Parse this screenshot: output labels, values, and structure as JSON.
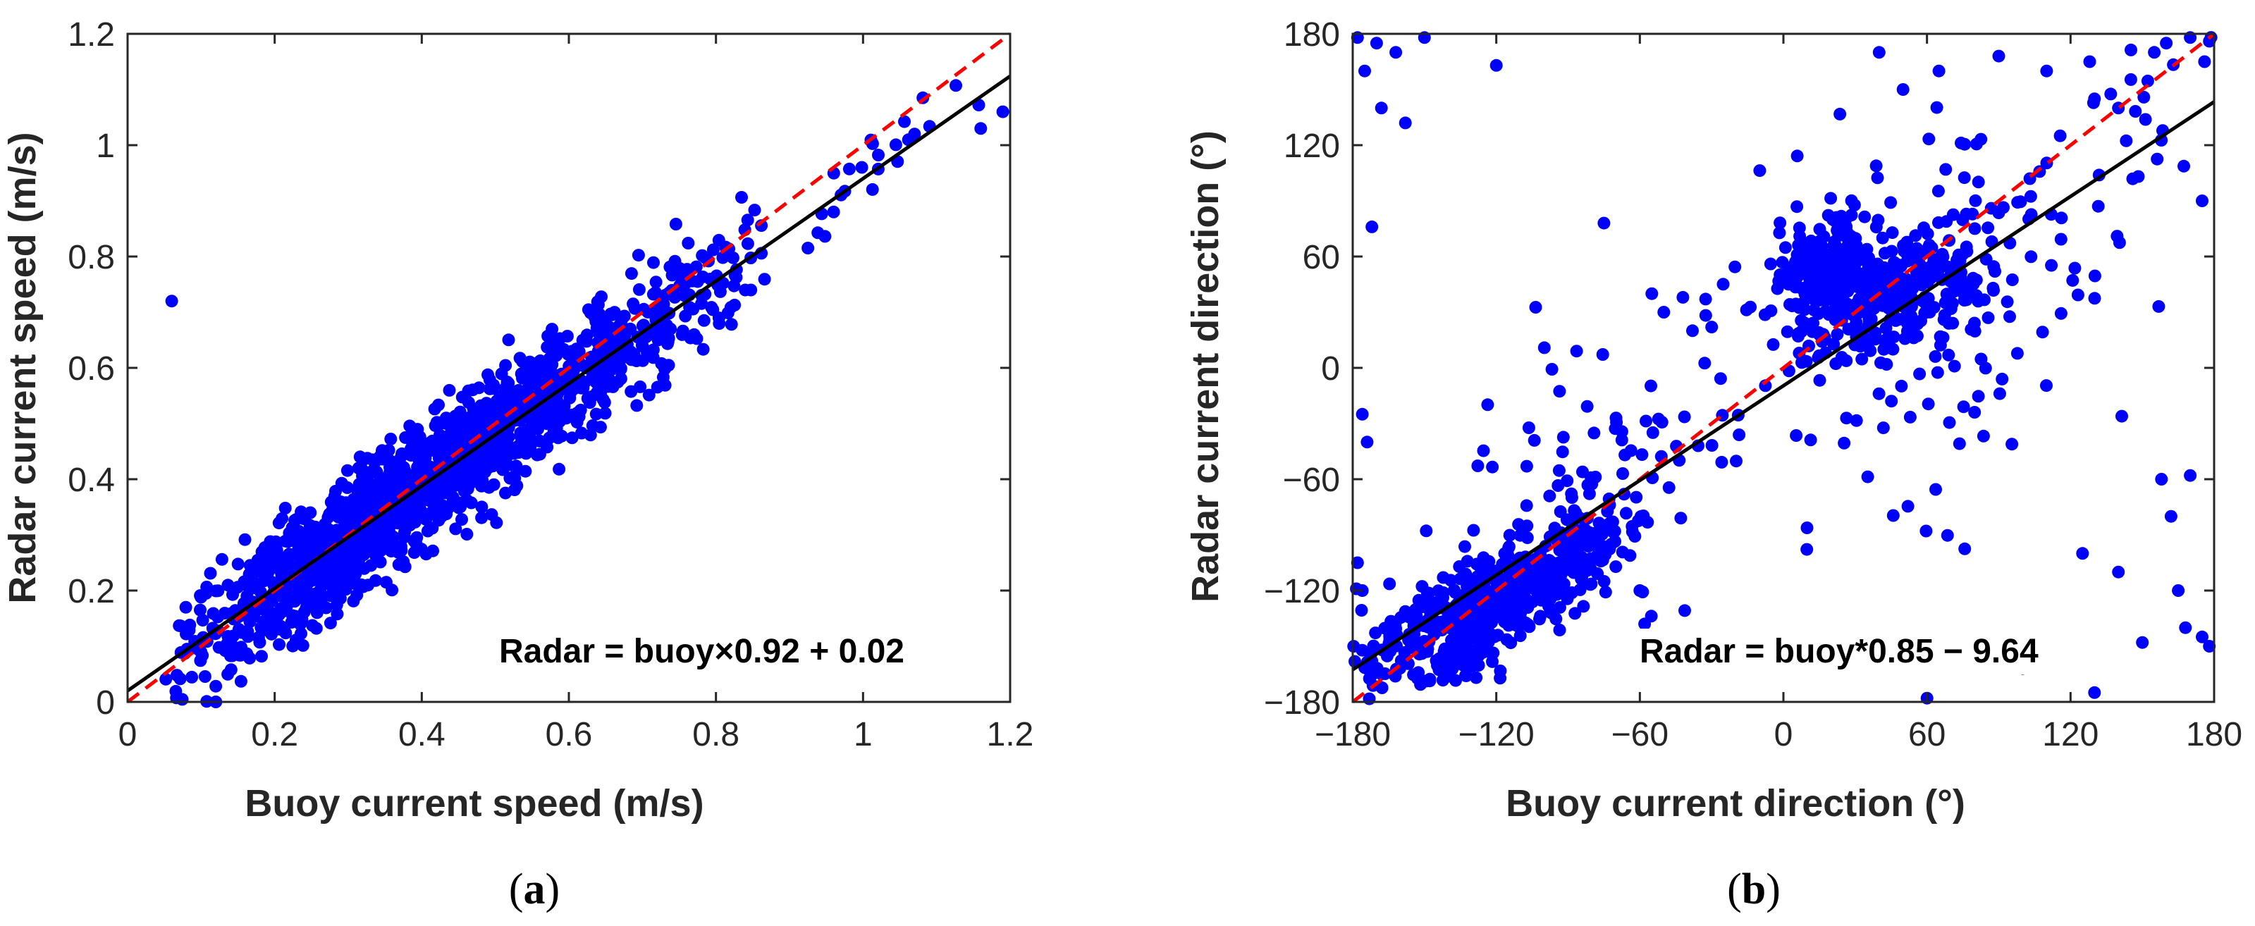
{
  "chart_data": [
    {
      "type": "scatter",
      "panel": "a",
      "caption_open": "(",
      "caption_letter": "a",
      "caption_close": ")",
      "xlabel": "Buoy current speed (m/s)",
      "ylabel": "Radar current speed (m/s)",
      "xlim": [
        0,
        1.2
      ],
      "ylim": [
        0,
        1.2
      ],
      "xticks": [
        0,
        0.2,
        0.4,
        0.6,
        0.8,
        1,
        1.2
      ],
      "xtick_labels": [
        "0",
        "0.2",
        "0.4",
        "0.6",
        "0.8",
        "1",
        "1.2"
      ],
      "yticks": [
        0,
        0.2,
        0.4,
        0.6,
        0.8,
        1,
        1.2
      ],
      "ytick_labels": [
        "0",
        "0.2",
        "0.4",
        "0.6",
        "0.8",
        "1",
        "1.2"
      ],
      "equation": "Radar = buoy×0.92 + 0.02",
      "fit": {
        "slope": 0.92,
        "intercept": 0.02,
        "color": "#000000"
      },
      "identity_line": {
        "slope": 1,
        "intercept": 0,
        "color": "#ff0000",
        "style": "dashed"
      },
      "point_color": "#0000ff",
      "clusters": [
        {
          "n": 1500,
          "x_range": [
            0.04,
            0.88
          ],
          "x_mode": 0.32,
          "slope": 0.92,
          "intercept": 0.02,
          "y_sd": 0.055
        },
        {
          "n": 22,
          "x_range": [
            0.88,
            1.19
          ],
          "x_mode": 1.0,
          "slope": 0.92,
          "intercept": 0.02,
          "y_sd": 0.04
        }
      ],
      "points": [
        [
          0.06,
          0.72
        ],
        [
          0.19,
          0.27
        ],
        [
          0.12,
          0.0
        ],
        [
          0.96,
          0.88
        ],
        [
          1.07,
          1.02
        ],
        [
          1.16,
          1.03
        ],
        [
          1.19,
          1.06
        ]
      ]
    },
    {
      "type": "scatter",
      "panel": "b",
      "caption_open": "(",
      "caption_letter": "b",
      "caption_close": ")",
      "xlabel": "Buoy current direction (°)",
      "ylabel": "Radar current direction (°)",
      "xlim": [
        -180,
        180
      ],
      "ylim": [
        -180,
        180
      ],
      "xticks": [
        -180,
        -120,
        -60,
        0,
        60,
        120,
        180
      ],
      "xtick_labels": [
        "−180",
        "−120",
        "−60",
        "0",
        "60",
        "120",
        "180"
      ],
      "yticks": [
        -180,
        -120,
        -60,
        0,
        60,
        120,
        180
      ],
      "ytick_labels": [
        "−180",
        "−120",
        "−60",
        "0",
        "60",
        "120",
        "180"
      ],
      "equation": "Radar = buoy*0.85 − 9.64",
      "fit": {
        "slope": 0.85,
        "intercept": -9.64,
        "color": "#000000"
      },
      "identity_line": {
        "slope": 1,
        "intercept": 0,
        "color": "#ff0000",
        "style": "dashed"
      },
      "point_color": "#0000ff",
      "clusters": [
        {
          "n": 560,
          "cx": -120,
          "cy": -125,
          "sx": 28,
          "sy": 24,
          "rho": 0.82
        },
        {
          "n": 330,
          "cx": 42,
          "cy": 40,
          "sx": 22,
          "sy": 18,
          "rho": 0.3
        },
        {
          "n": 150,
          "cx": 18,
          "cy": 55,
          "sx": 9,
          "sy": 14,
          "rho": 0.0
        },
        {
          "n": 90,
          "cx": -95,
          "cy": -80,
          "sx": 35,
          "sy": 50,
          "rho": 0.6
        },
        {
          "n": 110,
          "cx": 60,
          "cy": 30,
          "sx": 40,
          "sy": 60,
          "rho": 0.2
        },
        {
          "n": 40,
          "cx": 140,
          "cy": 110,
          "sx": 28,
          "sy": 45,
          "rho": 0.5
        }
      ],
      "points": [
        [
          -178,
          178
        ],
        [
          -170,
          175
        ],
        [
          -162,
          170
        ],
        [
          -150,
          178
        ],
        [
          -175,
          160
        ],
        [
          -168,
          140
        ],
        [
          -158,
          132
        ],
        [
          -120,
          163
        ],
        [
          -172,
          76
        ],
        [
          -176,
          -25
        ],
        [
          -174,
          -40
        ],
        [
          -178,
          -105
        ],
        [
          -176,
          -120
        ],
        [
          -172,
          -158
        ],
        [
          -55,
          40
        ],
        [
          -50,
          30
        ],
        [
          -42,
          38
        ],
        [
          -38,
          20
        ],
        [
          -30,
          22
        ],
        [
          -75,
          78
        ],
        [
          -60,
          -120
        ],
        [
          -58,
          -138
        ],
        [
          -30,
          -150
        ],
        [
          60,
          -178
        ],
        [
          130,
          -175
        ],
        [
          100,
          -162
        ],
        [
          125,
          -100
        ],
        [
          140,
          -110
        ],
        [
          150,
          -148
        ],
        [
          165,
          -120
        ],
        [
          168,
          -140
        ],
        [
          175,
          -145
        ],
        [
          178,
          -150
        ],
        [
          158,
          -60
        ],
        [
          170,
          -58
        ],
        [
          162,
          -80
        ],
        [
          40,
          170
        ],
        [
          50,
          150
        ],
        [
          65,
          160
        ],
        [
          90,
          168
        ],
        [
          110,
          160
        ],
        [
          128,
          165
        ],
        [
          155,
          170
        ],
        [
          160,
          175
        ],
        [
          170,
          178
        ],
        [
          178,
          176
        ],
        [
          176,
          165
        ],
        [
          130,
          145
        ],
        [
          140,
          140
        ],
        [
          175,
          90
        ]
      ]
    }
  ]
}
